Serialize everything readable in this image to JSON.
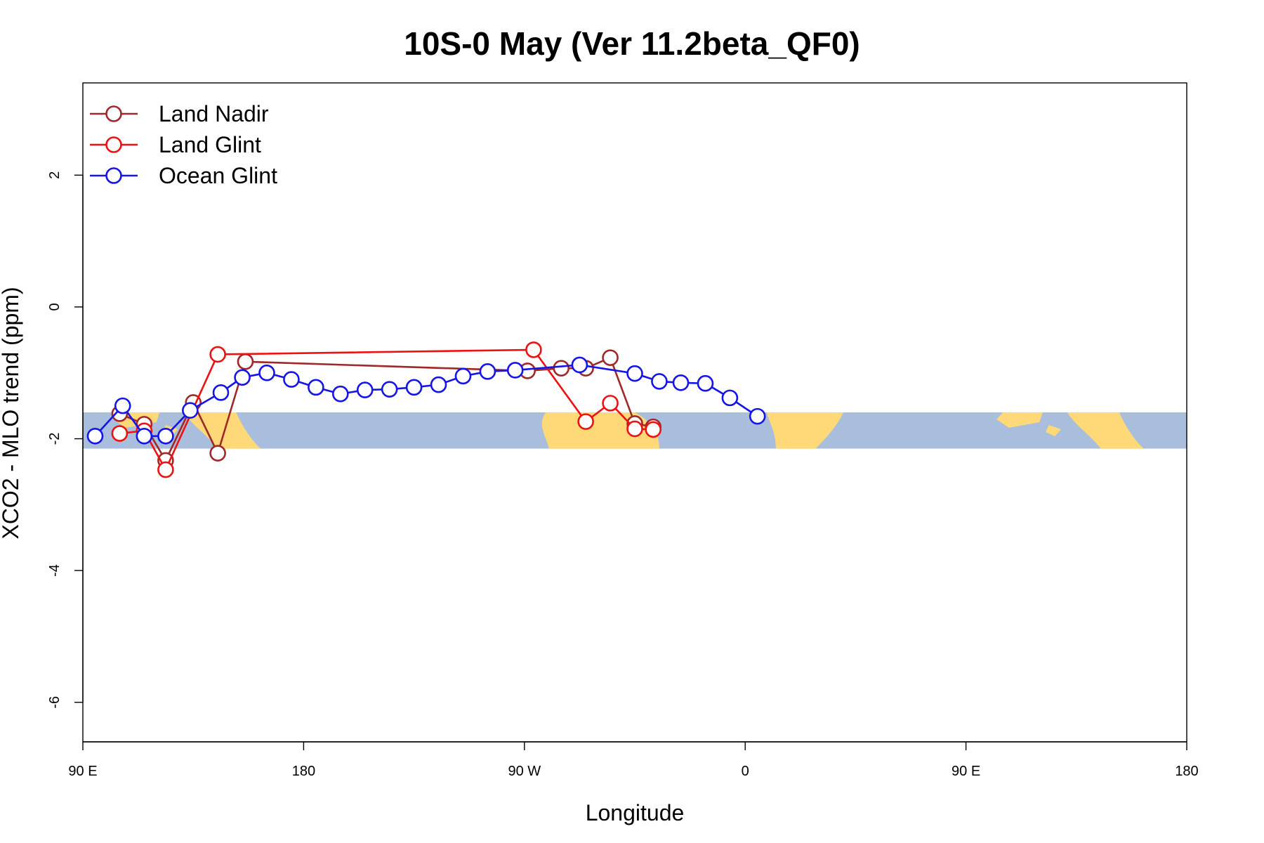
{
  "chart_data": {
    "type": "line",
    "title": "10S-0 May (Ver 11.2beta_QF0)",
    "xlabel": "Longitude",
    "ylabel": "XCO2 - MLO trend (ppm)",
    "xlim": [
      0,
      360
    ],
    "ylim": [
      -6.6,
      3.4
    ],
    "x_ticks": [
      {
        "value": 0,
        "label": "90 E"
      },
      {
        "value": 72,
        "label": "180"
      },
      {
        "value": 144,
        "label": "90 W"
      },
      {
        "value": 216,
        "label": "0"
      },
      {
        "value": 288,
        "label": "90 E"
      },
      {
        "value": 360,
        "label": "180"
      }
    ],
    "y_ticks": [
      {
        "value": 2,
        "label": "2"
      },
      {
        "value": 0,
        "label": "0"
      },
      {
        "value": -2,
        "label": "-2"
      },
      {
        "value": -4,
        "label": "-4"
      },
      {
        "value": -6,
        "label": "-6"
      }
    ],
    "legend_position": "top-left",
    "map_band": {
      "y_top": -1.6,
      "y_bottom": -2.15,
      "ocean_color": "#a8bedc",
      "land_color": "#ffd878"
    },
    "series": [
      {
        "name": "Land Nadir",
        "color": "#a02828",
        "x": [
          12,
          20,
          27,
          36,
          44,
          53,
          145,
          156,
          164,
          172,
          180,
          186
        ],
        "y": [
          -1.62,
          -1.78,
          -2.33,
          -1.45,
          -2.22,
          -0.83,
          -0.97,
          -0.93,
          -0.93,
          -0.77,
          -1.77,
          -1.82
        ]
      },
      {
        "name": "Land Glint",
        "color": "#ee1111",
        "x": [
          12,
          20,
          27,
          44,
          147,
          164,
          172,
          180,
          186
        ],
        "y": [
          -1.92,
          -1.88,
          -2.47,
          -0.72,
          -0.65,
          -1.74,
          -1.46,
          -1.85,
          -1.86
        ]
      },
      {
        "name": "Ocean Glint",
        "color": "#1515e6",
        "x": [
          4,
          13,
          20,
          27,
          35,
          45,
          52,
          60,
          68,
          76,
          84,
          92,
          100,
          108,
          116,
          124,
          132,
          141,
          162,
          180,
          188,
          195,
          203,
          211,
          220
        ],
        "y": [
          -1.96,
          -1.5,
          -1.96,
          -1.96,
          -1.57,
          -1.3,
          -1.07,
          -1.0,
          -1.1,
          -1.22,
          -1.32,
          -1.26,
          -1.25,
          -1.22,
          -1.18,
          -1.05,
          -0.98,
          -0.96,
          -0.88,
          -1.01,
          -1.13,
          -1.15,
          -1.16,
          -1.38,
          -1.66
        ]
      }
    ]
  }
}
